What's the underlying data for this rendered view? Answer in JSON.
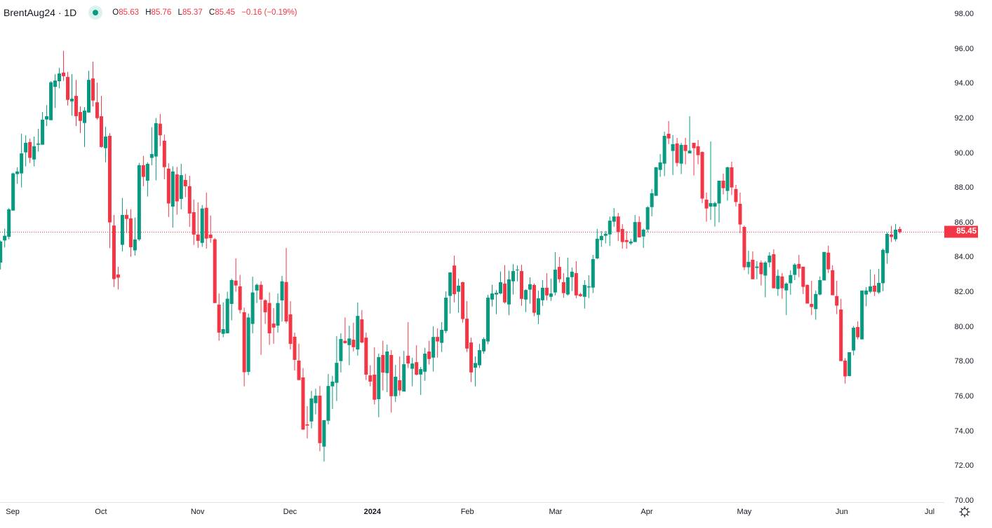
{
  "header": {
    "symbol": "BrentAug24 · 1D",
    "market_status_icon": "market-open-dot-icon",
    "ohlc": {
      "o_label": "O",
      "o": "85.63",
      "h_label": "H",
      "h": "85.76",
      "l_label": "L",
      "l": "85.37",
      "c_label": "C",
      "c": "85.45",
      "change": "−0.16 (−0.19%)"
    }
  },
  "colors": {
    "up": "#089981",
    "down": "#F23645",
    "price_line": "#F23645",
    "text": "#131722"
  },
  "settings_icon": "gear-icon",
  "chart_data": {
    "type": "candlestick",
    "title": "BrentAug24 · 1D",
    "interval": "1D",
    "ylim": [
      70,
      98
    ],
    "y_ticks": [
      "70.00",
      "72.00",
      "74.00",
      "76.00",
      "78.00",
      "80.00",
      "82.00",
      "84.00",
      "86.00",
      "88.00",
      "90.00",
      "92.00",
      "94.00",
      "96.00",
      "98.00"
    ],
    "x_ticks": [
      {
        "label": "Sep",
        "bar": 3.9
      },
      {
        "label": "Oct",
        "bar": 24.9
      },
      {
        "label": "Nov",
        "bar": 47.9
      },
      {
        "label": "Dec",
        "bar": 69.9
      },
      {
        "label": "2024",
        "bar": 89.5,
        "bold": true
      },
      {
        "label": "Feb",
        "bar": 112.1
      },
      {
        "label": "Mar",
        "bar": 133.1
      },
      {
        "label": "Apr",
        "bar": 154.8
      },
      {
        "label": "May",
        "bar": 178.0
      },
      {
        "label": "Jun",
        "bar": 201.2
      },
      {
        "label": "Jul",
        "bar": 222.1
      }
    ],
    "last_price": 85.45,
    "last_price_label": "85.45",
    "grid": false,
    "ohlc_columns": [
      "open",
      "high",
      "low",
      "close"
    ],
    "candles": [
      [
        83.7,
        84.97,
        83.3,
        84.91
      ],
      [
        84.97,
        85.65,
        84.57,
        85.24
      ],
      [
        85.18,
        86.83,
        85.04,
        86.76
      ],
      [
        86.69,
        88.87,
        86.69,
        88.83
      ],
      [
        88.79,
        89.18,
        88.23,
        88.94
      ],
      [
        88.83,
        91.11,
        88.02,
        89.98
      ],
      [
        90.04,
        91.02,
        89.23,
        90.59
      ],
      [
        90.63,
        90.84,
        89.43,
        89.72
      ],
      [
        89.63,
        90.95,
        89.23,
        90.39
      ],
      [
        90.48,
        91.39,
        90.08,
        90.55
      ],
      [
        90.48,
        92.36,
        90.48,
        91.92
      ],
      [
        91.93,
        92.76,
        91.55,
        92.12
      ],
      [
        91.89,
        94.13,
        91.89,
        94.07
      ],
      [
        93.81,
        94.54,
        92.6,
        94.17
      ],
      [
        94.13,
        94.91,
        93.73,
        94.58
      ],
      [
        94.63,
        95.88,
        94.15,
        94.42
      ],
      [
        94.38,
        94.67,
        92.74,
        93.06
      ],
      [
        92.97,
        94.54,
        92.16,
        93.13
      ],
      [
        93.29,
        94.21,
        91.55,
        92.12
      ],
      [
        92.36,
        92.68,
        91.15,
        91.85
      ],
      [
        91.73,
        92.64,
        90.35,
        92.44
      ],
      [
        92.33,
        94.74,
        92.33,
        94.21
      ],
      [
        94.29,
        95.26,
        92.68,
        93.02
      ],
      [
        92.92,
        94.05,
        91.93,
        92.01
      ],
      [
        92.12,
        93.29,
        90.31,
        90.35
      ],
      [
        90.28,
        91.52,
        89.47,
        90.95
      ],
      [
        90.99,
        91.15,
        84.53,
        86.01
      ],
      [
        85.83,
        86.44,
        82.29,
        82.75
      ],
      [
        83.01,
        83.46,
        82.15,
        82.83
      ],
      [
        84.72,
        87.42,
        84.34,
        86.44
      ],
      [
        86.44,
        86.77,
        85.4,
        86.21
      ],
      [
        86.24,
        86.77,
        84.03,
        84.58
      ],
      [
        84.4,
        86.29,
        84.1,
        85.03
      ],
      [
        85.03,
        89.43,
        84.95,
        89.3
      ],
      [
        89.3,
        89.84,
        88.09,
        88.63
      ],
      [
        88.41,
        89.47,
        87.5,
        89.38
      ],
      [
        89.72,
        91.49,
        89.3,
        89.94
      ],
      [
        89.8,
        92.01,
        88.43,
        91.72
      ],
      [
        91.69,
        92.25,
        90.4,
        91.02
      ],
      [
        90.71,
        91.06,
        88.49,
        89.19
      ],
      [
        89.1,
        89.41,
        86.32,
        87.1
      ],
      [
        86.92,
        89.24,
        85.71,
        88.94
      ],
      [
        88.77,
        89.2,
        86.45,
        87.22
      ],
      [
        87.36,
        89.38,
        86.76,
        88.73
      ],
      [
        88.45,
        88.8,
        87.46,
        88.09
      ],
      [
        88.09,
        88.69,
        85.75,
        86.52
      ],
      [
        86.6,
        87.32,
        84.71,
        85.31
      ],
      [
        85.31,
        87.16,
        84.54,
        84.95
      ],
      [
        84.83,
        87.01,
        84.6,
        86.81
      ],
      [
        86.85,
        87.73,
        84.5,
        85.08
      ],
      [
        85.31,
        86.41,
        84.84,
        85.11
      ],
      [
        85.04,
        85.11,
        81.37,
        81.37
      ],
      [
        81.28,
        81.92,
        79.2,
        79.67
      ],
      [
        79.6,
        81.41,
        79.4,
        79.87
      ],
      [
        79.63,
        82.02,
        79.63,
        81.62
      ],
      [
        81.32,
        82.78,
        80.37,
        82.69
      ],
      [
        82.66,
        83.94,
        82.02,
        82.38
      ],
      [
        82.33,
        82.99,
        80.78,
        80.97
      ],
      [
        80.84,
        81.11,
        76.58,
        77.39
      ],
      [
        77.41,
        80.77,
        77.22,
        80.54
      ],
      [
        80.17,
        82.89,
        79.63,
        81.98
      ],
      [
        82.09,
        82.49,
        81.37,
        82.42
      ],
      [
        82.42,
        82.62,
        78.39,
        81.57
      ],
      [
        81.53,
        81.59,
        80.17,
        80.84
      ],
      [
        81.37,
        81.98,
        78.96,
        79.63
      ],
      [
        80.19,
        81.08,
        79.03,
        79.96
      ],
      [
        80.07,
        81.92,
        79.67,
        81.37
      ],
      [
        81.52,
        82.93,
        80.31,
        82.62
      ],
      [
        82.58,
        84.54,
        80.2,
        80.31
      ],
      [
        80.72,
        81.48,
        78.7,
        79.02
      ],
      [
        79.43,
        79.67,
        77.49,
        78.1
      ],
      [
        78.06,
        79.03,
        76.94,
        76.94
      ],
      [
        77.09,
        77.63,
        74.07,
        74.09
      ],
      [
        74.39,
        75.44,
        73.58,
        74.32
      ],
      [
        74.56,
        76.32,
        74.16,
        75.88
      ],
      [
        75.61,
        76.44,
        74.97,
        76.04
      ],
      [
        76.04,
        76.6,
        72.84,
        73.31
      ],
      [
        73.11,
        74.63,
        72.25,
        74.63
      ],
      [
        74.6,
        77.29,
        74.39,
        76.6
      ],
      [
        76.58,
        77.18,
        75.28,
        76.85
      ],
      [
        76.78,
        79.47,
        75.73,
        77.93
      ],
      [
        78.03,
        79.63,
        77.38,
        79.3
      ],
      [
        79.2,
        80.54,
        79.04,
        79.06
      ],
      [
        78.95,
        80.07,
        77.79,
        79.33
      ],
      [
        79.26,
        80.24,
        78.59,
        78.83
      ],
      [
        78.7,
        81.4,
        78.35,
        80.63
      ],
      [
        80.43,
        80.97,
        79.06,
        79.1
      ],
      [
        79.38,
        79.67,
        76.94,
        77.25
      ],
      [
        77.21,
        77.79,
        76.58,
        76.85
      ],
      [
        77.25,
        78.82,
        75.53,
        75.81
      ],
      [
        75.84,
        78.46,
        74.8,
        78.26
      ],
      [
        78.38,
        79.2,
        76.34,
        77.37
      ],
      [
        77.34,
        78.98,
        76.24,
        78.58
      ],
      [
        78.38,
        78.66,
        75.07,
        76.01
      ],
      [
        76.01,
        77.81,
        75.68,
        77.13
      ],
      [
        76.93,
        78.3,
        76.05,
        76.34
      ],
      [
        76.28,
        78.62,
        76.28,
        77.85
      ],
      [
        78.34,
        80.27,
        77.63,
        77.89
      ],
      [
        77.59,
        78.22,
        76.58,
        77.89
      ],
      [
        77.97,
        78.94,
        77.21,
        77.25
      ],
      [
        77.26,
        77.69,
        76.08,
        77.57
      ],
      [
        77.42,
        78.79,
        76.9,
        78.46
      ],
      [
        78.58,
        79.2,
        77.83,
        78.15
      ],
      [
        78.23,
        80.03,
        77.42,
        79.42
      ],
      [
        79.42,
        79.91,
        78.23,
        79.16
      ],
      [
        79.08,
        80.27,
        78.55,
        79.83
      ],
      [
        79.76,
        82.04,
        79.64,
        81.68
      ],
      [
        81.78,
        83.13,
        80.77,
        83.13
      ],
      [
        83.53,
        84.1,
        81.41,
        81.88
      ],
      [
        82.02,
        82.78,
        80.81,
        82.37
      ],
      [
        82.57,
        82.6,
        80.24,
        80.45
      ],
      [
        80.47,
        81.48,
        78.55,
        78.75
      ],
      [
        79.1,
        79.38,
        76.82,
        77.38
      ],
      [
        77.65,
        78.3,
        76.58,
        77.92
      ],
      [
        77.79,
        79.02,
        77.63,
        78.66
      ],
      [
        78.59,
        79.4,
        78.46,
        79.3
      ],
      [
        79.16,
        81.84,
        79.0,
        81.68
      ],
      [
        81.57,
        82.42,
        81.17,
        81.92
      ],
      [
        81.86,
        82.12,
        80.73,
        81.96
      ],
      [
        81.92,
        83.19,
        81.88,
        82.57
      ],
      [
        82.49,
        83.55,
        81.34,
        81.41
      ],
      [
        81.29,
        83.23,
        80.67,
        82.73
      ],
      [
        82.62,
        83.61,
        81.86,
        83.21
      ],
      [
        83.27,
        83.53,
        82.62,
        83.29
      ],
      [
        83.21,
        83.57,
        81.21,
        81.61
      ],
      [
        81.57,
        82.16,
        80.85,
        82.12
      ],
      [
        82.14,
        82.85,
        81.33,
        82.45
      ],
      [
        82.41,
        82.49,
        80.61,
        80.81
      ],
      [
        80.69,
        82.08,
        80.16,
        81.64
      ],
      [
        81.53,
        82.69,
        81.21,
        82.25
      ],
      [
        82.25,
        83.09,
        81.53,
        81.81
      ],
      [
        81.73,
        82.77,
        81.49,
        81.92
      ],
      [
        81.98,
        84.3,
        81.81,
        83.29
      ],
      [
        83.45,
        84.02,
        82.54,
        82.74
      ],
      [
        82.57,
        83.09,
        81.68,
        81.94
      ],
      [
        81.86,
        83.98,
        81.81,
        82.85
      ],
      [
        82.86,
        83.41,
        82.06,
        83.17
      ],
      [
        83.09,
        83.78,
        81.65,
        81.81
      ],
      [
        81.88,
        81.96,
        81.73,
        81.77
      ],
      [
        81.73,
        82.69,
        81.05,
        82.41
      ],
      [
        82.27,
        82.97,
        81.65,
        82.33
      ],
      [
        82.26,
        84.14,
        81.94,
        83.9
      ],
      [
        83.94,
        85.63,
        83.9,
        85.07
      ],
      [
        84.99,
        85.51,
        84.6,
        85.23
      ],
      [
        85.24,
        85.52,
        84.8,
        85.36
      ],
      [
        85.32,
        86.35,
        84.66,
        86.11
      ],
      [
        86.05,
        86.84,
        85.76,
        86.35
      ],
      [
        86.35,
        86.56,
        84.94,
        85.47
      ],
      [
        85.63,
        85.91,
        84.5,
        84.88
      ],
      [
        84.99,
        85.51,
        84.5,
        84.88
      ],
      [
        84.8,
        85.07,
        84.71,
        84.91
      ],
      [
        84.88,
        86.44,
        84.88,
        86.03
      ],
      [
        86.03,
        86.36,
        85.15,
        85.15
      ],
      [
        85.2,
        85.65,
        84.54,
        85.59
      ],
      [
        85.6,
        86.95,
        85.44,
        86.88
      ],
      [
        86.89,
        87.93,
        86.36,
        87.69
      ],
      [
        87.54,
        89.2,
        87.54,
        89.18
      ],
      [
        89.03,
        89.94,
        88.63,
        89.46
      ],
      [
        89.39,
        91.23,
        88.67,
        90.99
      ],
      [
        91.11,
        91.84,
        90.52,
        90.84
      ],
      [
        90.12,
        91.03,
        88.73,
        90.51
      ],
      [
        90.55,
        90.87,
        89.23,
        89.43
      ],
      [
        89.39,
        90.59,
        88.79,
        90.47
      ],
      [
        90.47,
        90.87,
        89.35,
        90.12
      ],
      [
        89.98,
        92.12,
        89.98,
        90.14
      ],
      [
        90.59,
        90.59,
        88.71,
        90.28
      ],
      [
        90.39,
        90.75,
        89.35,
        89.88
      ],
      [
        90.06,
        90.1,
        87.12,
        87.38
      ],
      [
        87.32,
        87.73,
        86.05,
        86.81
      ],
      [
        86.92,
        90.67,
        86.15,
        87.12
      ],
      [
        86.92,
        87.2,
        85.77,
        87.12
      ],
      [
        87.1,
        88.41,
        86.01,
        88.41
      ],
      [
        88.41,
        88.81,
        87.62,
        87.98
      ],
      [
        87.82,
        89.22,
        87.26,
        89.18
      ],
      [
        89.18,
        89.5,
        87.58,
        88.02
      ],
      [
        87.93,
        88.17,
        86.93,
        87.18
      ],
      [
        87.08,
        87.73,
        85.4,
        85.89
      ],
      [
        85.75,
        85.83,
        83.27,
        83.43
      ],
      [
        83.43,
        84.38,
        83.03,
        83.74
      ],
      [
        83.86,
        84.34,
        82.74,
        82.74
      ],
      [
        83.39,
        83.78,
        82.74,
        83.47
      ],
      [
        83.7,
        83.82,
        82.38,
        83.03
      ],
      [
        82.95,
        83.78,
        81.7,
        83.7
      ],
      [
        83.71,
        84.3,
        83.43,
        84.1
      ],
      [
        84.18,
        84.46,
        82.22,
        82.22
      ],
      [
        82.18,
        83.3,
        81.78,
        82.94
      ],
      [
        82.9,
        83.1,
        81.62,
        82.22
      ],
      [
        82.1,
        82.56,
        80.68,
        82.49
      ],
      [
        82.51,
        83.26,
        81.85,
        82.98
      ],
      [
        82.99,
        83.66,
        82.69,
        83.58
      ],
      [
        83.62,
        84.14,
        82.86,
        83.35
      ],
      [
        83.46,
        83.46,
        81.89,
        82.3
      ],
      [
        82.41,
        82.45,
        81.34,
        81.34
      ],
      [
        81.32,
        82.65,
        80.68,
        81.14
      ],
      [
        81.02,
        82.09,
        80.41,
        81.89
      ],
      [
        81.86,
        82.9,
        81.82,
        82.69
      ],
      [
        82.67,
        84.31,
        82.67,
        84.31
      ],
      [
        84.27,
        84.67,
        83.1,
        83.31
      ],
      [
        83.26,
        83.54,
        81.82,
        81.82
      ],
      [
        81.77,
        82.65,
        80.73,
        81.22
      ],
      [
        81.0,
        81.61,
        78.03,
        78.03
      ],
      [
        78.06,
        78.2,
        76.74,
        77.15
      ],
      [
        77.17,
        78.54,
        77.15,
        78.54
      ],
      [
        78.64,
        80.05,
        78.36,
        79.95
      ],
      [
        79.99,
        80.32,
        79.28,
        79.4
      ],
      [
        79.28,
        82.09,
        79.28,
        82.09
      ],
      [
        81.86,
        82.29,
        81.18,
        82.09
      ],
      [
        82.02,
        83.3,
        81.94,
        82.33
      ],
      [
        82.37,
        83.02,
        81.78,
        82.02
      ],
      [
        81.98,
        83.34,
        81.9,
        82.53
      ],
      [
        82.51,
        84.51,
        82.06,
        84.43
      ],
      [
        84.24,
        85.43,
        83.63,
        85.35
      ],
      [
        85.31,
        85.8,
        84.88,
        85.17
      ],
      [
        85.04,
        85.92,
        84.92,
        85.59
      ],
      [
        85.63,
        85.76,
        85.37,
        85.45
      ]
    ]
  }
}
